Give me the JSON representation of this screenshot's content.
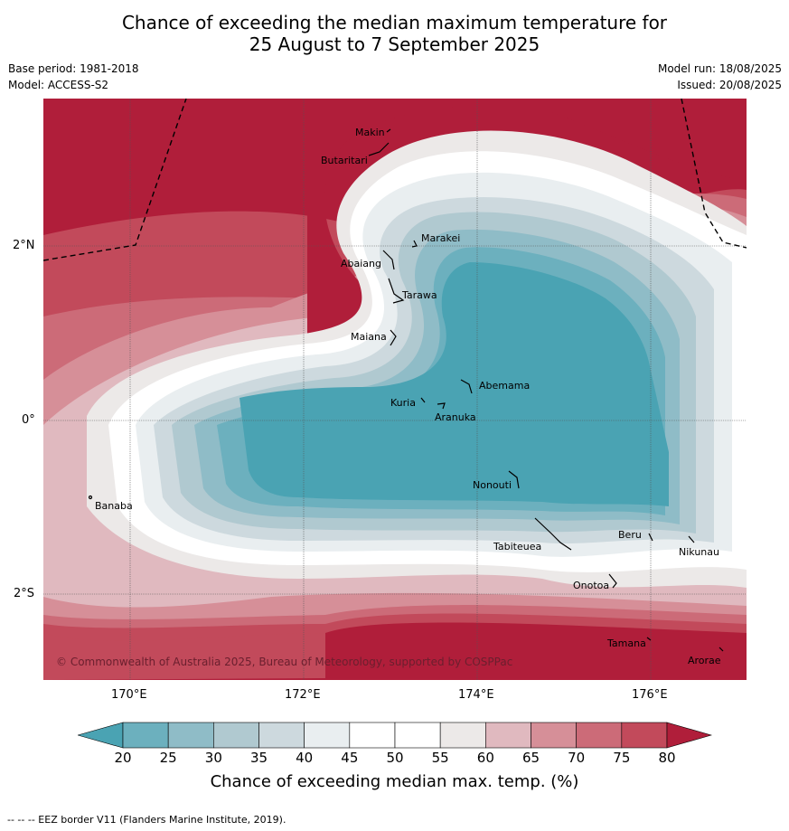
{
  "title_line1": "Chance of exceeding the median maximum temperature for",
  "title_line2": "25 August to 7 September 2025",
  "meta": {
    "base_period": "Base period: 1981-2018",
    "model": "Model: ACCESS-S2",
    "model_run": "Model run: 18/08/2025",
    "issued": "Issued: 20/08/2025"
  },
  "axes": {
    "lat_ticks": [
      "2°N",
      "0°",
      "2°S"
    ],
    "lon_ticks": [
      "170°E",
      "172°E",
      "174°E",
      "176°E"
    ]
  },
  "places": {
    "makin": "Makin",
    "butaritari": "Butaritari",
    "marakei": "Marakei",
    "abaiang": "Abaiang",
    "tarawa": "Tarawa",
    "maiana": "Maiana",
    "abemama": "Abemama",
    "kuria": "Kuria",
    "aranuka": "Aranuka",
    "banaba": "Banaba",
    "nonouti": "Nonouti",
    "beru": "Beru",
    "tabiteuea": "Tabiteuea",
    "nikunau": "Nikunau",
    "onotoa": "Onotoa",
    "tamana": "Tamana",
    "arorae": "Arorae"
  },
  "copyright": "© Commonwealth of Australia 2025, Bureau of Meteorology, supported by COSPPac",
  "colorbar": {
    "ticks": [
      "20",
      "25",
      "30",
      "35",
      "40",
      "45",
      "50",
      "55",
      "60",
      "65",
      "70",
      "75",
      "80"
    ],
    "colors": [
      "#4aa3b3",
      "#6cb0be",
      "#8fbcc7",
      "#b0c9d0",
      "#cdd9de",
      "#e9eef0",
      "#ffffff",
      "#ffffff",
      "#ece9e8",
      "#e0b9bf",
      "#d68f98",
      "#cc6b78",
      "#c24a5b",
      "#b01e3a"
    ],
    "label": "Chance of exceeding median max. temp. (%)"
  },
  "footer": "--  --  -- EEZ border V11 (Flanders Marine Institute, 2019)."
}
